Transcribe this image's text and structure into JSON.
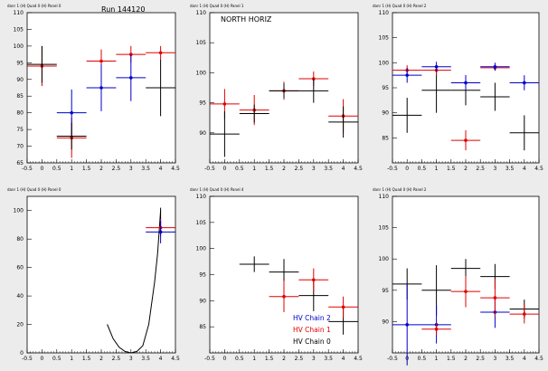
{
  "run_label": "Run 144120",
  "colors": {
    "black": "#000000",
    "red": "#e00000",
    "blue": "#0000c8"
  },
  "chart_data": [
    {
      "type": "scatter",
      "header": "danr 1 (H) Quad 0 (H) Panel 0",
      "annotation": "Run 144120",
      "xlim": [
        -0.5,
        4.5
      ],
      "ylim": [
        65,
        110
      ],
      "xticks": [
        "-0.5",
        "0",
        "0.5",
        "1",
        "1.5",
        "2",
        "2.5",
        "3",
        "3.5",
        "4",
        "4.5"
      ],
      "yticks": [
        "65",
        "70",
        "75",
        "80",
        "85",
        "90",
        "95",
        "100",
        "105",
        "110"
      ],
      "series": [
        {
          "color": "red",
          "points": [
            {
              "x": 0,
              "y": 94,
              "xerr": 0.5,
              "yerr": 6
            },
            {
              "x": 1,
              "y": 72.5,
              "xerr": 0.5,
              "yerr": 6
            },
            {
              "x": 2,
              "y": 95.5,
              "xerr": 0.5,
              "yerr": 3.5
            },
            {
              "x": 3,
              "y": 97.5,
              "xerr": 0.5,
              "yerr": 2.5
            },
            {
              "x": 4,
              "y": 98,
              "xerr": 0.5,
              "yerr": 2
            }
          ]
        },
        {
          "color": "blue",
          "points": [
            {
              "x": 1,
              "y": 80,
              "xerr": 0.5,
              "yerr": 7
            },
            {
              "x": 2,
              "y": 87.5,
              "xerr": 0.5,
              "yerr": 7
            },
            {
              "x": 3,
              "y": 90.5,
              "xerr": 0.5,
              "yerr": 7
            }
          ]
        },
        {
          "color": "black",
          "points": [
            {
              "x": 0,
              "y": 94.5,
              "xerr": 0.5,
              "yerr": 5.5
            },
            {
              "x": 1,
              "y": 73,
              "xerr": 0.5,
              "yerr": 4
            },
            {
              "x": 4,
              "y": 87.5,
              "xerr": 0.5,
              "yerr": 8.5
            }
          ]
        }
      ]
    },
    {
      "type": "scatter",
      "header": "danr 1 (H) Quad 0 (H) Panel 1",
      "annotation": "NORTH HORIZ",
      "xlim": [
        -0.5,
        4.5
      ],
      "ylim": [
        85,
        110
      ],
      "xticks": [
        "-0.5",
        "0",
        "0.5",
        "1",
        "1.5",
        "2",
        "2.5",
        "3",
        "3.5",
        "4",
        "4.5"
      ],
      "yticks": [
        "90",
        "95",
        "100",
        "105",
        "110"
      ],
      "series": [
        {
          "color": "red",
          "points": [
            {
              "x": 0,
              "y": 94.8,
              "xerr": 0.5,
              "yerr": 2.5
            },
            {
              "x": 1,
              "y": 93.8,
              "xerr": 0.5,
              "yerr": 2.5
            },
            {
              "x": 2,
              "y": 97,
              "xerr": 0.5,
              "yerr": 1.5
            },
            {
              "x": 3,
              "y": 99,
              "xerr": 0.5,
              "yerr": 1.2
            },
            {
              "x": 4,
              "y": 92.8,
              "xerr": 0.5,
              "yerr": 2.8
            }
          ]
        },
        {
          "color": "black",
          "points": [
            {
              "x": 0,
              "y": 89.8,
              "xerr": 0.5,
              "yerr": 3.8
            },
            {
              "x": 1,
              "y": 93.2,
              "xerr": 0.5,
              "yerr": 1.5
            },
            {
              "x": 2,
              "y": 97,
              "xerr": 0.5,
              "yerr": 1.2
            },
            {
              "x": 3,
              "y": 97,
              "xerr": 0.5,
              "yerr": 2
            },
            {
              "x": 4,
              "y": 91.8,
              "xerr": 0.5,
              "yerr": 2.6
            }
          ]
        }
      ]
    },
    {
      "type": "scatter",
      "header": "danr 1 (H) Quad 0 (H) Panel 2",
      "annotation": "",
      "xlim": [
        -0.5,
        4.5
      ],
      "ylim": [
        80,
        110
      ],
      "xticks": [
        "-0.5",
        "0",
        "0.5",
        "1",
        "1.5",
        "2",
        "2.5",
        "3",
        "3.5",
        "4",
        "4.5"
      ],
      "yticks": [
        "85",
        "90",
        "95",
        "100",
        "105",
        "110"
      ],
      "series": [
        {
          "color": "black",
          "points": [
            {
              "x": 0,
              "y": 89.5,
              "xerr": 0.5,
              "yerr": 3.5
            },
            {
              "x": 1,
              "y": 94.5,
              "xerr": 0.5,
              "yerr": 4.5
            },
            {
              "x": 2,
              "y": 94.5,
              "xerr": 0.5,
              "yerr": 3
            },
            {
              "x": 3,
              "y": 93.2,
              "xerr": 0.5,
              "yerr": 2.8
            },
            {
              "x": 4,
              "y": 86,
              "xerr": 0.5,
              "yerr": 3.5
            }
          ]
        },
        {
          "color": "red",
          "points": [
            {
              "x": 0,
              "y": 98.5,
              "xerr": 0.5,
              "yerr": 1
            },
            {
              "x": 1,
              "y": 98.5,
              "xerr": 0.5,
              "yerr": 1
            },
            {
              "x": 2,
              "y": 84.5,
              "xerr": 0.5,
              "yerr": 2
            },
            {
              "x": 3,
              "y": 99,
              "xerr": 0.5,
              "yerr": 0.5
            }
          ]
        },
        {
          "color": "blue",
          "points": [
            {
              "x": 0,
              "y": 97.5,
              "xerr": 0.5,
              "yerr": 1.5
            },
            {
              "x": 1,
              "y": 99.2,
              "xerr": 0.5,
              "yerr": 1
            },
            {
              "x": 2,
              "y": 96,
              "xerr": 0.5,
              "yerr": 1.5
            },
            {
              "x": 3,
              "y": 99.2,
              "xerr": 0.5,
              "yerr": 0.8
            },
            {
              "x": 4,
              "y": 96,
              "xerr": 0.5,
              "yerr": 1.5
            }
          ]
        }
      ]
    },
    {
      "type": "scatter",
      "header": "danr 1 (H) Quad 0 (H) Panel 0",
      "annotation": "",
      "xlim": [
        -0.5,
        4.5
      ],
      "ylim": [
        0,
        110
      ],
      "xticks": [
        "-0.5",
        "0",
        "0.5",
        "1",
        "1.5",
        "2",
        "2.5",
        "3",
        "3.5",
        "4",
        "4.5"
      ],
      "yticks": [
        "0",
        "20",
        "40",
        "60",
        "80",
        "100"
      ],
      "curve": {
        "color": "black",
        "points": [
          [
            2.2,
            20
          ],
          [
            2.4,
            10
          ],
          [
            2.6,
            4
          ],
          [
            2.8,
            1
          ],
          [
            3,
            0
          ],
          [
            3.2,
            1
          ],
          [
            3.4,
            5
          ],
          [
            3.6,
            20
          ],
          [
            3.8,
            50
          ],
          [
            3.9,
            70
          ],
          [
            4,
            100
          ]
        ]
      },
      "series": [
        {
          "color": "black",
          "points": [
            {
              "x": 4,
              "y": 94,
              "xerr": 0,
              "yerr": 8
            }
          ]
        },
        {
          "color": "red",
          "points": [
            {
              "x": 4,
              "y": 88,
              "xerr": 0.5,
              "yerr": 6
            }
          ]
        },
        {
          "color": "blue",
          "points": [
            {
              "x": 4,
              "y": 85,
              "xerr": 0.5,
              "yerr": 8
            }
          ]
        }
      ]
    },
    {
      "type": "scatter",
      "header": "danr 1 (H) Quad 0 (H) Panel 4",
      "annotation": "",
      "xlim": [
        -0.5,
        4.5
      ],
      "ylim": [
        80,
        110
      ],
      "xticks": [
        "-0.5",
        "0",
        "0.5",
        "1",
        "1.5",
        "2",
        "2.5",
        "3",
        "3.5",
        "4",
        "4.5"
      ],
      "yticks": [
        "85",
        "90",
        "95",
        "100",
        "105",
        "110"
      ],
      "legend": [
        {
          "color": "blue",
          "label": "HV Chain 2"
        },
        {
          "color": "red",
          "label": "HV Chain 1"
        },
        {
          "color": "black",
          "label": "HV Chain 0"
        }
      ],
      "series": [
        {
          "color": "black",
          "points": [
            {
              "x": 1,
              "y": 97,
              "xerr": 0.5,
              "yerr": 1.5
            },
            {
              "x": 2,
              "y": 95.5,
              "xerr": 0.5,
              "yerr": 2.5
            },
            {
              "x": 3,
              "y": 91,
              "xerr": 0.5,
              "yerr": 3
            },
            {
              "x": 4,
              "y": 86,
              "xerr": 0.5,
              "yerr": 2.5
            }
          ]
        },
        {
          "color": "red",
          "points": [
            {
              "x": 2,
              "y": 90.8,
              "xerr": 0.5,
              "yerr": 3
            },
            {
              "x": 3,
              "y": 94,
              "xerr": 0.5,
              "yerr": 2.2
            },
            {
              "x": 4,
              "y": 88.8,
              "xerr": 0.5,
              "yerr": 2
            }
          ]
        }
      ]
    },
    {
      "type": "scatter",
      "header": "danr 1 (H) Quad 0 (H) Panel 2",
      "annotation": "",
      "xlim": [
        -0.5,
        4.5
      ],
      "ylim": [
        85,
        110
      ],
      "xticks": [
        "-0.5",
        "0",
        "0.5",
        "1",
        "1.5",
        "2",
        "2.5",
        "3",
        "3.5",
        "4",
        "4.5"
      ],
      "yticks": [
        "90",
        "95",
        "100",
        "105",
        "110"
      ],
      "series": [
        {
          "color": "black",
          "points": [
            {
              "x": 0,
              "y": 96,
              "xerr": 0.5,
              "yerr": 2.5
            },
            {
              "x": 1,
              "y": 95,
              "xerr": 0.5,
              "yerr": 4
            },
            {
              "x": 2,
              "y": 98.5,
              "xerr": 0.5,
              "yerr": 1.5
            },
            {
              "x": 3,
              "y": 97.2,
              "xerr": 0.5,
              "yerr": 2
            },
            {
              "x": 4,
              "y": 92,
              "xerr": 0.5,
              "yerr": 1.5
            }
          ]
        },
        {
          "color": "blue",
          "points": [
            {
              "x": 0,
              "y": 89.5,
              "xerr": 0.5,
              "yerr": 6.5
            },
            {
              "x": 1,
              "y": 89.5,
              "xerr": 0.5,
              "yerr": 3
            },
            {
              "x": 3,
              "y": 91.5,
              "xerr": 0.5,
              "yerr": 2.5
            }
          ]
        },
        {
          "color": "red",
          "points": [
            {
              "x": 1,
              "y": 88.8,
              "xerr": 0.5,
              "yerr": 1
            },
            {
              "x": 2,
              "y": 94.8,
              "xerr": 0.5,
              "yerr": 2.5
            },
            {
              "x": 3,
              "y": 93.8,
              "xerr": 0.5,
              "yerr": 3
            },
            {
              "x": 4,
              "y": 91.2,
              "xerr": 0.5,
              "yerr": 1.5
            }
          ]
        }
      ]
    }
  ]
}
